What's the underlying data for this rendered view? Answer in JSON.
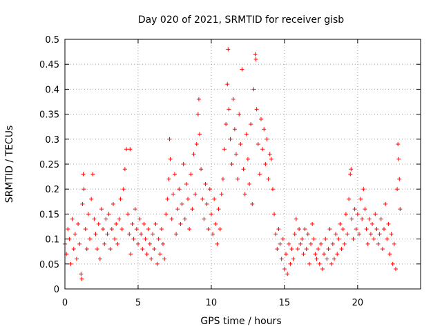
{
  "chart_data": {
    "type": "scatter",
    "title": "Day 020 of 2021, SRMTID for receiver gisb",
    "xlabel": "GPS time / hours",
    "ylabel": "SRMTID / TECUs",
    "xlim": [
      0,
      24.3
    ],
    "ylim": [
      0,
      0.5
    ],
    "x_ticks": [
      0,
      5,
      10,
      15,
      20
    ],
    "x_tick_labels": [
      "0",
      "5",
      "10",
      "15",
      "20"
    ],
    "y_ticks": [
      0,
      0.05,
      0.1,
      0.15,
      0.2,
      0.25,
      0.3,
      0.35,
      0.4,
      0.45,
      0.5
    ],
    "y_tick_labels": [
      "0",
      "0.05",
      "0.1",
      "0.15",
      "0.2",
      "0.25",
      "0.3",
      "0.35",
      "0.4",
      "0.45",
      "0.5"
    ],
    "grid": true,
    "marker": "+",
    "marker_color": "#ff0000",
    "series": [
      {
        "name": "SRMTID",
        "points": [
          [
            0.0,
            0.09
          ],
          [
            0.1,
            0.07
          ],
          [
            0.2,
            0.12
          ],
          [
            0.3,
            0.1
          ],
          [
            0.4,
            0.05
          ],
          [
            0.5,
            0.14
          ],
          [
            0.6,
            0.08
          ],
          [
            0.7,
            0.11
          ],
          [
            0.8,
            0.06
          ],
          [
            0.9,
            0.13
          ],
          [
            1.0,
            0.09
          ],
          [
            1.1,
            0.03
          ],
          [
            1.15,
            0.02
          ],
          [
            1.2,
            0.17
          ],
          [
            1.25,
            0.23
          ],
          [
            1.3,
            0.2
          ],
          [
            1.4,
            0.12
          ],
          [
            1.5,
            0.08
          ],
          [
            1.6,
            0.15
          ],
          [
            1.7,
            0.1
          ],
          [
            1.8,
            0.18
          ],
          [
            1.9,
            0.23
          ],
          [
            2.0,
            0.14
          ],
          [
            2.1,
            0.11
          ],
          [
            2.2,
            0.08
          ],
          [
            2.3,
            0.13
          ],
          [
            2.4,
            0.06
          ],
          [
            2.5,
            0.16
          ],
          [
            2.6,
            0.12
          ],
          [
            2.7,
            0.09
          ],
          [
            2.8,
            0.14
          ],
          [
            2.9,
            0.11
          ],
          [
            3.0,
            0.15
          ],
          [
            3.1,
            0.08
          ],
          [
            3.2,
            0.12
          ],
          [
            3.3,
            0.17
          ],
          [
            3.4,
            0.1
          ],
          [
            3.5,
            0.13
          ],
          [
            3.6,
            0.09
          ],
          [
            3.7,
            0.14
          ],
          [
            3.8,
            0.18
          ],
          [
            3.9,
            0.12
          ],
          [
            4.0,
            0.2
          ],
          [
            4.1,
            0.24
          ],
          [
            4.2,
            0.28
          ],
          [
            4.3,
            0.15
          ],
          [
            4.4,
            0.11
          ],
          [
            4.45,
            0.28
          ],
          [
            4.5,
            0.07
          ],
          [
            4.6,
            0.13
          ],
          [
            4.7,
            0.1
          ],
          [
            4.8,
            0.16
          ],
          [
            4.9,
            0.12
          ],
          [
            5.0,
            0.09
          ],
          [
            5.1,
            0.14
          ],
          [
            5.2,
            0.11
          ],
          [
            5.3,
            0.08
          ],
          [
            5.4,
            0.13
          ],
          [
            5.5,
            0.1
          ],
          [
            5.6,
            0.07
          ],
          [
            5.7,
            0.12
          ],
          [
            5.8,
            0.09
          ],
          [
            5.9,
            0.06
          ],
          [
            6.0,
            0.11
          ],
          [
            6.1,
            0.08
          ],
          [
            6.2,
            0.13
          ],
          [
            6.3,
            0.05
          ],
          [
            6.4,
            0.1
          ],
          [
            6.5,
            0.07
          ],
          [
            6.6,
            0.12
          ],
          [
            6.7,
            0.09
          ],
          [
            6.8,
            0.06
          ],
          [
            6.9,
            0.15
          ],
          [
            7.0,
            0.18
          ],
          [
            7.1,
            0.22
          ],
          [
            7.15,
            0.3
          ],
          [
            7.2,
            0.26
          ],
          [
            7.3,
            0.14
          ],
          [
            7.4,
            0.19
          ],
          [
            7.5,
            0.23
          ],
          [
            7.6,
            0.11
          ],
          [
            7.7,
            0.16
          ],
          [
            7.8,
            0.2
          ],
          [
            7.9,
            0.13
          ],
          [
            8.0,
            0.17
          ],
          [
            8.1,
            0.25
          ],
          [
            8.2,
            0.14
          ],
          [
            8.3,
            0.21
          ],
          [
            8.4,
            0.18
          ],
          [
            8.5,
            0.12
          ],
          [
            8.6,
            0.23
          ],
          [
            8.7,
            0.16
          ],
          [
            8.8,
            0.27
          ],
          [
            8.9,
            0.19
          ],
          [
            9.0,
            0.29
          ],
          [
            9.1,
            0.35
          ],
          [
            9.15,
            0.38
          ],
          [
            9.2,
            0.31
          ],
          [
            9.3,
            0.24
          ],
          [
            9.4,
            0.18
          ],
          [
            9.5,
            0.14
          ],
          [
            9.6,
            0.21
          ],
          [
            9.7,
            0.17
          ],
          [
            9.8,
            0.12
          ],
          [
            9.9,
            0.2
          ],
          [
            10.0,
            0.15
          ],
          [
            10.1,
            0.11
          ],
          [
            10.2,
            0.18
          ],
          [
            10.3,
            0.13
          ],
          [
            10.4,
            0.09
          ],
          [
            10.5,
            0.16
          ],
          [
            10.6,
            0.12
          ],
          [
            10.7,
            0.19
          ],
          [
            10.8,
            0.22
          ],
          [
            10.9,
            0.28
          ],
          [
            11.0,
            0.33
          ],
          [
            11.1,
            0.41
          ],
          [
            11.15,
            0.48
          ],
          [
            11.2,
            0.36
          ],
          [
            11.3,
            0.3
          ],
          [
            11.4,
            0.25
          ],
          [
            11.5,
            0.38
          ],
          [
            11.6,
            0.32
          ],
          [
            11.7,
            0.27
          ],
          [
            11.8,
            0.22
          ],
          [
            11.9,
            0.35
          ],
          [
            12.0,
            0.29
          ],
          [
            12.1,
            0.44
          ],
          [
            12.2,
            0.24
          ],
          [
            12.3,
            0.19
          ],
          [
            12.4,
            0.31
          ],
          [
            12.5,
            0.26
          ],
          [
            12.6,
            0.21
          ],
          [
            12.7,
            0.33
          ],
          [
            12.8,
            0.17
          ],
          [
            12.9,
            0.4
          ],
          [
            13.0,
            0.47
          ],
          [
            13.05,
            0.46
          ],
          [
            13.1,
            0.36
          ],
          [
            13.2,
            0.29
          ],
          [
            13.3,
            0.23
          ],
          [
            13.4,
            0.34
          ],
          [
            13.5,
            0.28
          ],
          [
            13.6,
            0.32
          ],
          [
            13.7,
            0.25
          ],
          [
            13.8,
            0.3
          ],
          [
            13.9,
            0.22
          ],
          [
            14.0,
            0.27
          ],
          [
            14.1,
            0.26
          ],
          [
            14.2,
            0.2
          ],
          [
            14.3,
            0.15
          ],
          [
            14.4,
            0.11
          ],
          [
            14.5,
            0.08
          ],
          [
            14.6,
            0.12
          ],
          [
            14.7,
            0.09
          ],
          [
            14.8,
            0.06
          ],
          [
            14.9,
            0.1
          ],
          [
            15.0,
            0.04
          ],
          [
            15.1,
            0.07
          ],
          [
            15.2,
            0.03
          ],
          [
            15.3,
            0.09
          ],
          [
            15.4,
            0.05
          ],
          [
            15.5,
            0.08
          ],
          [
            15.6,
            0.06
          ],
          [
            15.7,
            0.11
          ],
          [
            15.8,
            0.14
          ],
          [
            15.9,
            0.08
          ],
          [
            16.0,
            0.12
          ],
          [
            16.1,
            0.09
          ],
          [
            16.2,
            0.1
          ],
          [
            16.3,
            0.07
          ],
          [
            16.4,
            0.12
          ],
          [
            16.5,
            0.08
          ],
          [
            16.6,
            0.11
          ],
          [
            16.7,
            0.05
          ],
          [
            16.8,
            0.09
          ],
          [
            16.9,
            0.13
          ],
          [
            17.0,
            0.1
          ],
          [
            17.1,
            0.07
          ],
          [
            17.2,
            0.06
          ],
          [
            17.3,
            0.08
          ],
          [
            17.4,
            0.05
          ],
          [
            17.5,
            0.09
          ],
          [
            17.6,
            0.04
          ],
          [
            17.7,
            0.07
          ],
          [
            17.8,
            0.1
          ],
          [
            17.9,
            0.06
          ],
          [
            18.0,
            0.08
          ],
          [
            18.1,
            0.12
          ],
          [
            18.2,
            0.05
          ],
          [
            18.3,
            0.09
          ],
          [
            18.4,
            0.06
          ],
          [
            18.5,
            0.11
          ],
          [
            18.6,
            0.07
          ],
          [
            18.7,
            0.1
          ],
          [
            18.8,
            0.13
          ],
          [
            18.9,
            0.08
          ],
          [
            19.0,
            0.12
          ],
          [
            19.1,
            0.09
          ],
          [
            19.2,
            0.15
          ],
          [
            19.3,
            0.11
          ],
          [
            19.4,
            0.18
          ],
          [
            19.5,
            0.23
          ],
          [
            19.55,
            0.24
          ],
          [
            19.6,
            0.14
          ],
          [
            19.7,
            0.1
          ],
          [
            19.8,
            0.16
          ],
          [
            19.9,
            0.12
          ],
          [
            20.0,
            0.15
          ],
          [
            20.1,
            0.11
          ],
          [
            20.2,
            0.18
          ],
          [
            20.3,
            0.14
          ],
          [
            20.4,
            0.2
          ],
          [
            20.5,
            0.16
          ],
          [
            20.6,
            0.12
          ],
          [
            20.7,
            0.09
          ],
          [
            20.8,
            0.14
          ],
          [
            20.9,
            0.11
          ],
          [
            21.0,
            0.13
          ],
          [
            21.1,
            0.1
          ],
          [
            21.2,
            0.15
          ],
          [
            21.3,
            0.12
          ],
          [
            21.4,
            0.09
          ],
          [
            21.5,
            0.11
          ],
          [
            21.6,
            0.14
          ],
          [
            21.7,
            0.08
          ],
          [
            21.8,
            0.12
          ],
          [
            21.9,
            0.17
          ],
          [
            22.0,
            0.1
          ],
          [
            22.1,
            0.13
          ],
          [
            22.2,
            0.07
          ],
          [
            22.3,
            0.11
          ],
          [
            22.4,
            0.05
          ],
          [
            22.5,
            0.09
          ],
          [
            22.6,
            0.04
          ],
          [
            22.7,
            0.2
          ],
          [
            22.75,
            0.29
          ],
          [
            22.8,
            0.26
          ],
          [
            22.85,
            0.22
          ],
          [
            22.9,
            0.16
          ]
        ]
      }
    ]
  }
}
